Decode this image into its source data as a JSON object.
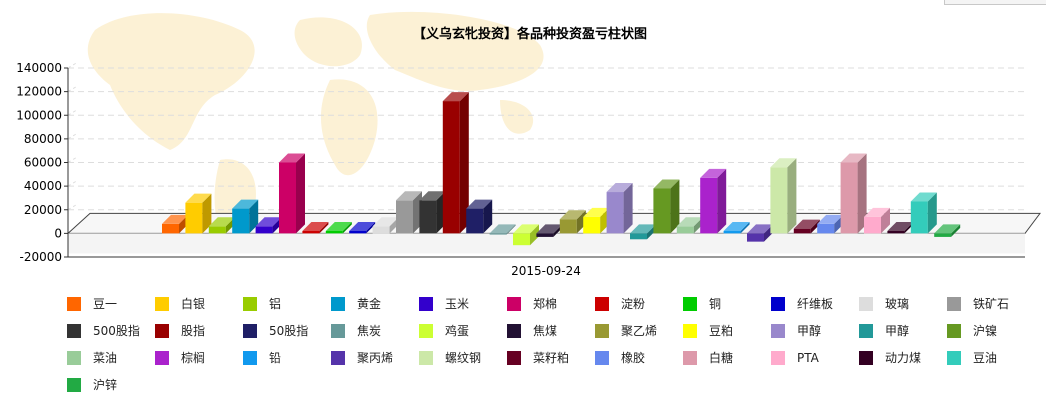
{
  "chart_data": {
    "type": "bar",
    "title": "【义乌玄牝投资】各品种投资盈亏柱状图",
    "categories": [
      "2015-09-24"
    ],
    "ylim": [
      -20000,
      140000
    ],
    "yticks": [
      -20000,
      0,
      20000,
      40000,
      60000,
      80000,
      100000,
      120000,
      140000
    ],
    "grid": true,
    "legend_position": "bottom",
    "series": [
      {
        "name": "豆一",
        "value": 8000,
        "color": "#ff6600"
      },
      {
        "name": "白银",
        "value": 26000,
        "color": "#ffcc00"
      },
      {
        "name": "铝",
        "value": 6000,
        "color": "#99cc00"
      },
      {
        "name": "黄金",
        "value": 21000,
        "color": "#0099cc"
      },
      {
        "name": "玉米",
        "value": 6000,
        "color": "#3300cc"
      },
      {
        "name": "郑棉",
        "value": 60000,
        "color": "#cc0066"
      },
      {
        "name": "淀粉",
        "value": 2000,
        "color": "#cc0000"
      },
      {
        "name": "铜",
        "value": 2000,
        "color": "#00cc00"
      },
      {
        "name": "纤维板",
        "value": 2000,
        "color": "#0000cc"
      },
      {
        "name": "玻璃",
        "value": 6000,
        "color": "#dddddd"
      },
      {
        "name": "铁矿石",
        "value": 28000,
        "color": "#999999"
      },
      {
        "name": "500股指",
        "value": 28000,
        "color": "#333333"
      },
      {
        "name": "股指",
        "value": 112000,
        "color": "#990000"
      },
      {
        "name": "50股指",
        "value": 21000,
        "color": "#1f1f66"
      },
      {
        "name": "焦炭",
        "value": -1000,
        "color": "#669999"
      },
      {
        "name": "鸡蛋",
        "value": -10000,
        "color": "#ccff33"
      },
      {
        "name": "焦煤",
        "value": -3000,
        "color": "#221133"
      },
      {
        "name": "聚乙烯",
        "value": 12000,
        "color": "#999933"
      },
      {
        "name": "豆粕",
        "value": 14000,
        "color": "#ffff00"
      },
      {
        "name": "甲醇",
        "value": 35000,
        "color": "#9988cc"
      },
      {
        "name": "甲醇",
        "value": -5000,
        "color": "#229999"
      },
      {
        "name": "沪镍",
        "value": 38000,
        "color": "#669922"
      },
      {
        "name": "菜油",
        "value": 6000,
        "color": "#99cc99"
      },
      {
        "name": "棕榈",
        "value": 47000,
        "color": "#aa22cc"
      },
      {
        "name": "铅",
        "value": 2000,
        "color": "#1199ee"
      },
      {
        "name": "聚丙烯",
        "value": -7000,
        "color": "#5533aa"
      },
      {
        "name": "螺纹钢",
        "value": 56000,
        "color": "#cce8a8"
      },
      {
        "name": "菜籽粕",
        "value": 4000,
        "color": "#660022"
      },
      {
        "name": "橡胶",
        "value": 8000,
        "color": "#6688ee"
      },
      {
        "name": "白糖",
        "value": 60000,
        "color": "#dd99aa"
      },
      {
        "name": "PTA",
        "value": 14000,
        "color": "#ffaacc"
      },
      {
        "name": "动力煤",
        "value": 2000,
        "color": "#330022"
      },
      {
        "name": "豆油",
        "value": 27000,
        "color": "#33ccbb"
      },
      {
        "name": "沪锌",
        "value": -3000,
        "color": "#22aa44"
      }
    ]
  }
}
